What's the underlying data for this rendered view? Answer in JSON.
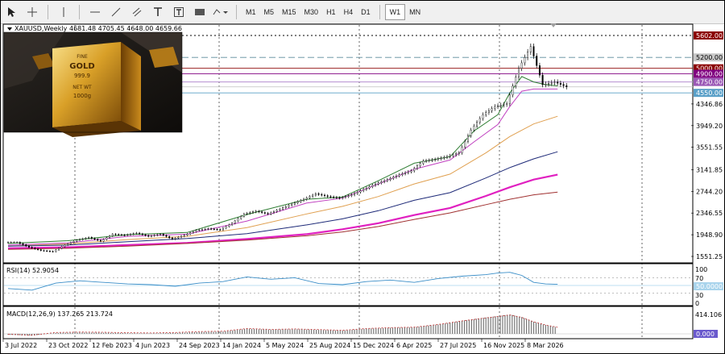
{
  "toolbar": {
    "tools": [
      "cursor-icon",
      "crosshair-icon",
      "vertical-line-icon",
      "horizontal-line-icon",
      "trend-line-icon",
      "channel-icon",
      "text-icon",
      "text-label-icon",
      "rectangle-icon",
      "shapes-icon"
    ],
    "timeframes": [
      "M1",
      "M5",
      "M15",
      "M30",
      "H1",
      "H4",
      "D1",
      "W1",
      "MN"
    ],
    "active_timeframe": "W1"
  },
  "header": {
    "symbol": "XAUUSD,Weekly",
    "ohlc": "4681.48 4705.45 4648.00 4659.66"
  },
  "image_text": {
    "l1": "FINE",
    "l2": "GOLD",
    "l3": "999.9",
    "l4": "NET WT",
    "l5": "1000g"
  },
  "rsi_panel": {
    "label": "RSI(14) 52.9054",
    "levels": [
      "100",
      "70",
      "30",
      "0"
    ],
    "badge": "50.0000",
    "value": 52.9054
  },
  "macd_panel": {
    "label": "MACD(12,26,9) 137.265 213.724",
    "top": "414.106",
    "badge": "0.000"
  },
  "price_badges": [
    {
      "text": "5602.00",
      "price": 5602,
      "bg": "#8b0000",
      "fg": "#ffffff"
    },
    {
      "text": "5200.00",
      "price": 5200,
      "bg": "#c8c8c8",
      "fg": "#000000"
    },
    {
      "text": "5000.00",
      "price": 5000,
      "bg": "#8b0000",
      "fg": "#ffffff"
    },
    {
      "text": "4900.00",
      "price": 4900,
      "bg": "#800080",
      "fg": "#ffffff"
    },
    {
      "text": "4750.00",
      "price": 4750,
      "bg": "#9b59b6",
      "fg": "#ffffff"
    },
    {
      "text": "4550.00",
      "price": 4550,
      "bg": "#5aa0c8",
      "fg": "#ffffff"
    }
  ],
  "chart_data": {
    "type": "line",
    "symbol": "XAUUSD",
    "timeframe": "Weekly",
    "y_ticks": [
      "4346.86",
      "3949.20",
      "3551.55",
      "3141.85",
      "2744.20",
      "2346.55",
      "1948.90",
      "1551.25"
    ],
    "x_ticks": [
      "3 Jul 2022",
      "23 Oct 2022",
      "12 Feb 2023",
      "4 Jun 2023",
      "24 Sep 2023",
      "14 Jan 2024",
      "5 May 2024",
      "25 Aug 2024",
      "15 Dec 2024",
      "6 Apr 2025",
      "27 Jul 2025",
      "16 Nov 2025",
      "8 Mar 2026"
    ],
    "x_months": [
      0,
      3.7,
      7.3,
      11,
      14.7,
      18.4,
      22.1,
      25.8,
      29.4,
      33.1,
      36.8,
      40.5,
      44.2
    ],
    "ylim": [
      1551.25,
      5750
    ],
    "price_series": {
      "name": "price",
      "x": [
        0,
        1,
        2,
        3,
        4,
        5,
        6,
        7,
        8,
        9,
        10,
        11,
        12,
        13,
        14,
        15,
        16,
        17,
        18,
        19,
        20,
        21,
        22,
        23,
        24,
        25,
        26,
        27,
        28,
        29,
        30,
        31,
        32,
        33,
        34,
        35,
        36,
        37,
        38,
        39,
        40,
        41,
        42,
        43,
        44,
        45,
        46
      ],
      "values": [
        1810,
        1720,
        1660,
        1640,
        1760,
        1850,
        1900,
        1830,
        1960,
        1940,
        1980,
        1920,
        1960,
        1870,
        1940,
        2030,
        2060,
        2040,
        2160,
        2330,
        2380,
        2330,
        2420,
        2510,
        2600,
        2700,
        2650,
        2620,
        2680,
        2780,
        2880,
        2960,
        3050,
        3120,
        3300,
        3330,
        3380,
        3450,
        3870,
        4150,
        4300,
        4350,
        5000,
        5400,
        4700,
        4750,
        4660
      ]
    },
    "ma_series": [
      {
        "color": "#2e7d32",
        "x": [
          0,
          5,
          10,
          15,
          20,
          25,
          28,
          31,
          34,
          37,
          39,
          41,
          42,
          43,
          44,
          45,
          46
        ],
        "values": [
          1790,
          1840,
          1950,
          1990,
          2320,
          2600,
          2640,
          2940,
          3260,
          3380,
          3850,
          4150,
          4550,
          4850,
          4750,
          4700,
          4680
        ]
      },
      {
        "color": "#c040c0",
        "x": [
          0,
          5,
          10,
          15,
          20,
          25,
          28,
          31,
          34,
          37,
          39,
          41,
          42,
          43,
          44,
          45,
          46
        ],
        "values": [
          1760,
          1800,
          1920,
          1960,
          2200,
          2530,
          2620,
          2880,
          3150,
          3320,
          3650,
          3970,
          4300,
          4580,
          4620,
          4620,
          4620
        ]
      },
      {
        "color": "#e0a050",
        "x": [
          0,
          5,
          10,
          15,
          20,
          25,
          28,
          31,
          34,
          37,
          40,
          42,
          44,
          46
        ],
        "values": [
          1740,
          1780,
          1860,
          1920,
          2080,
          2330,
          2470,
          2650,
          2880,
          3060,
          3450,
          3750,
          3980,
          4120
        ]
      },
      {
        "color": "#1e2a78",
        "x": [
          0,
          5,
          10,
          15,
          20,
          25,
          28,
          31,
          34,
          37,
          40,
          42,
          44,
          46
        ],
        "values": [
          1740,
          1760,
          1820,
          1880,
          1970,
          2130,
          2240,
          2390,
          2580,
          2720,
          2990,
          3180,
          3340,
          3470
        ]
      },
      {
        "color": "#e020c0",
        "x": [
          0,
          5,
          10,
          15,
          20,
          25,
          28,
          31,
          34,
          37,
          40,
          42,
          44,
          46
        ],
        "values": [
          1700,
          1720,
          1760,
          1800,
          1870,
          1960,
          2050,
          2160,
          2310,
          2440,
          2660,
          2820,
          2960,
          3050
        ]
      },
      {
        "color": "#a03030",
        "x": [
          0,
          5,
          10,
          15,
          20,
          25,
          28,
          31,
          34,
          37,
          40,
          42,
          44,
          46
        ],
        "values": [
          1680,
          1700,
          1740,
          1790,
          1850,
          1930,
          2000,
          2100,
          2230,
          2350,
          2500,
          2600,
          2680,
          2730
        ]
      }
    ],
    "rsi": {
      "x": [
        0,
        2,
        4,
        6,
        8,
        10,
        12,
        14,
        16,
        18,
        20,
        22,
        24,
        26,
        28,
        30,
        32,
        34,
        36,
        38,
        40,
        41,
        42,
        43,
        44,
        45,
        46
      ],
      "values": [
        42,
        38,
        56,
        62,
        58,
        54,
        52,
        48,
        56,
        60,
        72,
        66,
        70,
        55,
        52,
        60,
        64,
        58,
        68,
        74,
        78,
        82,
        84,
        76,
        58,
        54,
        53
      ]
    },
    "macd": {
      "x": [
        0,
        2,
        4,
        6,
        8,
        10,
        12,
        14,
        16,
        18,
        20,
        22,
        24,
        26,
        28,
        30,
        32,
        34,
        36,
        38,
        40,
        41,
        42,
        43,
        44,
        45,
        46
      ],
      "values": [
        -20,
        -40,
        20,
        30,
        25,
        15,
        10,
        20,
        40,
        50,
        110,
        90,
        100,
        85,
        70,
        110,
        130,
        140,
        200,
        280,
        350,
        380,
        414,
        360,
        260,
        190,
        137
      ]
    }
  }
}
